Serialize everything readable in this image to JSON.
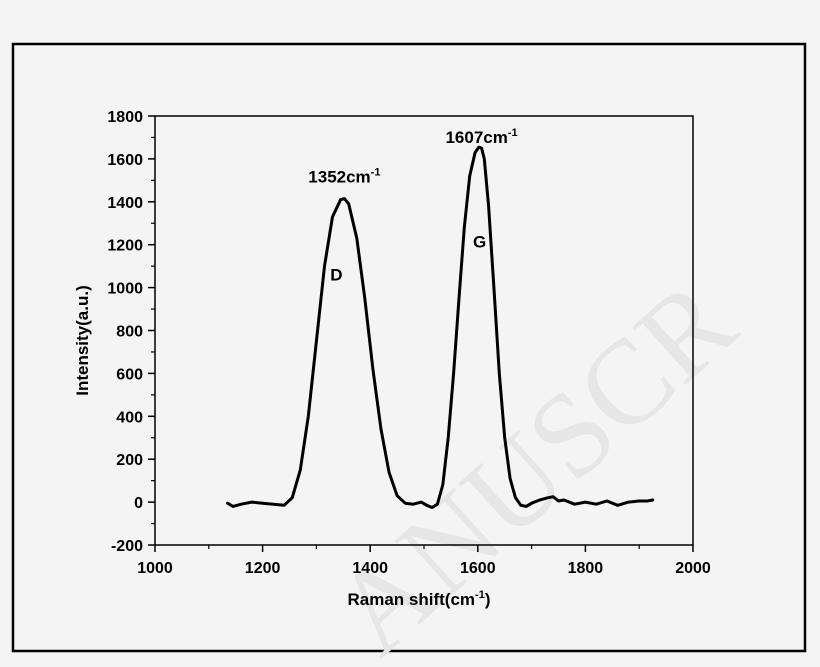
{
  "chart_data": {
    "type": "line",
    "xlabel": "Raman shift(cm",
    "xlabel_sup": "-1",
    "xlabel_suffix": ")",
    "ylabel": "Intensity(a.u.)",
    "xlim": [
      1000,
      2000
    ],
    "ylim": [
      -200,
      1800
    ],
    "xticks": [
      1000,
      1200,
      1400,
      1600,
      1800,
      2000
    ],
    "yticks": [
      -200,
      0,
      200,
      400,
      600,
      800,
      1000,
      1200,
      1400,
      1600,
      1800
    ],
    "grid": false,
    "series": [
      {
        "x": [
          1135,
          1145,
          1160,
          1180,
          1200,
          1220,
          1240,
          1255,
          1270,
          1285,
          1300,
          1315,
          1330,
          1345,
          1352,
          1360,
          1375,
          1390,
          1405,
          1420,
          1435,
          1450,
          1465,
          1480,
          1495,
          1505,
          1515,
          1525,
          1535,
          1545,
          1555,
          1565,
          1575,
          1585,
          1595,
          1602,
          1607,
          1612,
          1620,
          1630,
          1640,
          1650,
          1660,
          1670,
          1680,
          1690,
          1700,
          1715,
          1730,
          1740,
          1750,
          1760,
          1780,
          1800,
          1820,
          1840,
          1860,
          1880,
          1900,
          1915,
          1925
        ],
        "y": [
          -5,
          -20,
          -10,
          0,
          -5,
          -10,
          -15,
          20,
          150,
          400,
          750,
          1100,
          1330,
          1410,
          1415,
          1390,
          1230,
          950,
          620,
          340,
          140,
          30,
          -5,
          -10,
          0,
          -15,
          -25,
          -10,
          80,
          300,
          600,
          950,
          1280,
          1520,
          1630,
          1655,
          1650,
          1600,
          1380,
          1000,
          600,
          300,
          110,
          20,
          -15,
          -20,
          -5,
          10,
          20,
          25,
          5,
          10,
          -10,
          0,
          -10,
          5,
          -15,
          0,
          5,
          5,
          10
        ]
      }
    ],
    "annotations": [
      {
        "text": "1352cm",
        "sup": "-1",
        "x": 1352,
        "y": 1415
      },
      {
        "text": "D",
        "x": 1352,
        "y": 1220
      },
      {
        "text": "1607cm",
        "sup": "-1",
        "x": 1607,
        "y": 1655
      },
      {
        "text": "G",
        "x": 1607,
        "y": 1280
      }
    ]
  },
  "watermark": "ANUSCR"
}
